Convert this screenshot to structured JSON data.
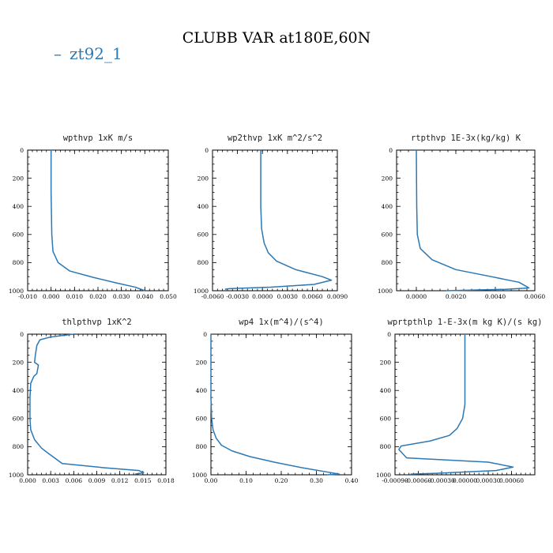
{
  "figure": {
    "title": "CLUBB VAR at180E,60N",
    "legend": [
      {
        "label": "zt92_1",
        "color": "#2b78b4"
      }
    ]
  },
  "chart_data": [
    {
      "type": "line",
      "title": "wpthvp  1xK m/s",
      "xlim": [
        -0.01,
        0.05
      ],
      "ylim": [
        1000,
        0
      ],
      "xticks": [
        -0.01,
        0.0,
        0.01,
        0.02,
        0.03,
        0.04,
        0.05
      ],
      "xtick_labels": [
        "-0.010",
        "0.000",
        "0.010",
        "0.020",
        "0.030",
        "0.040",
        "0.050"
      ],
      "yticks": [
        0,
        200,
        400,
        600,
        800,
        1000
      ],
      "ytick_labels": [
        "0",
        "200",
        "400",
        "600",
        "800",
        "1000"
      ],
      "series": [
        {
          "name": "zt92_1",
          "x": [
            0.0,
            0.0,
            0.0003,
            0.0008,
            0.003,
            0.008,
            0.018,
            0.028,
            0.036,
            0.04
          ],
          "y": [
            0,
            300,
            600,
            720,
            800,
            860,
            905,
            945,
            975,
            1000
          ]
        }
      ]
    },
    {
      "type": "line",
      "title": "wp2thvp  1xK m^2/s^2",
      "xlim": [
        -0.006,
        0.009
      ],
      "ylim": [
        1000,
        0
      ],
      "xticks": [
        -0.006,
        -0.003,
        0.0,
        0.003,
        0.006,
        0.009
      ],
      "xtick_labels": [
        "-0.0060",
        "-0.0030",
        "0.0000",
        "0.0030",
        "0.0060",
        "0.0090"
      ],
      "yticks": [
        0,
        200,
        400,
        600,
        800,
        1000
      ],
      "ytick_labels": [
        "0",
        "200",
        "400",
        "600",
        "800",
        "1000"
      ],
      "series": [
        {
          "name": "zt92_1",
          "x": [
            -0.0002,
            -0.0002,
            -0.0001,
            0.0002,
            0.0007,
            0.0017,
            0.004,
            0.0072,
            0.0083,
            0.0062,
            0.001,
            -0.004,
            -0.0045
          ],
          "y": [
            0,
            400,
            560,
            660,
            730,
            790,
            850,
            900,
            925,
            955,
            975,
            985,
            990
          ]
        }
      ]
    },
    {
      "type": "line",
      "title": "rtpthvp  1E-3x(kg/kg) K",
      "xlim": [
        -0.001,
        0.006
      ],
      "ylim": [
        1000,
        0
      ],
      "xticks": [
        0.0,
        0.002,
        0.004,
        0.006
      ],
      "xtick_labels": [
        "0.0000",
        "0.0020",
        "0.0040",
        "0.0060"
      ],
      "yticks": [
        0,
        200,
        400,
        600,
        800,
        1000
      ],
      "ytick_labels": [
        "0",
        "200",
        "400",
        "600",
        "800",
        "1000"
      ],
      "series": [
        {
          "name": "zt92_1",
          "x": [
            0.0,
            2e-05,
            5e-05,
            0.0002,
            0.0008,
            0.002,
            0.0038,
            0.0052,
            0.0057,
            0.0045,
            0.0015
          ],
          "y": [
            0,
            400,
            600,
            700,
            780,
            850,
            900,
            940,
            980,
            990,
            1000
          ]
        }
      ]
    },
    {
      "type": "line",
      "title": "thlpthvp  1xK^2",
      "xlim": [
        0.0,
        0.018
      ],
      "ylim": [
        1000,
        0
      ],
      "xticks": [
        0.0,
        0.003,
        0.006,
        0.009,
        0.012,
        0.015,
        0.018
      ],
      "xtick_labels": [
        "0.000",
        "0.003",
        "0.006",
        "0.009",
        "0.012",
        "0.015",
        "0.018"
      ],
      "yticks": [
        0,
        200,
        400,
        600,
        800,
        1000
      ],
      "ytick_labels": [
        "0",
        "200",
        "400",
        "600",
        "800",
        "1000"
      ],
      "series": [
        {
          "name": "zt92_1",
          "x": [
            0.006,
            0.003,
            0.0016,
            0.0012,
            0.001,
            0.0009,
            0.0014,
            0.0012,
            0.0008,
            0.0004,
            0.0003,
            0.0003,
            0.0004,
            0.0009,
            0.0018,
            0.0025,
            0.0045,
            0.01,
            0.0145,
            0.0151,
            0.014
          ],
          "y": [
            0,
            20,
            40,
            80,
            150,
            200,
            220,
            280,
            300,
            350,
            450,
            600,
            680,
            750,
            810,
            840,
            920,
            950,
            970,
            985,
            995
          ]
        }
      ]
    },
    {
      "type": "line",
      "title": "wp4  1x(m^4)/(s^4)",
      "xlim": [
        0.0,
        0.4
      ],
      "ylim": [
        1000,
        0
      ],
      "xticks": [
        0.0,
        0.1,
        0.2,
        0.3,
        0.4
      ],
      "xtick_labels": [
        "0.00",
        "0.10",
        "0.20",
        "0.30",
        "0.40"
      ],
      "yticks": [
        0,
        200,
        400,
        600,
        800,
        1000
      ],
      "ytick_labels": [
        "0",
        "200",
        "400",
        "600",
        "800",
        "1000"
      ],
      "series": [
        {
          "name": "zt92_1",
          "x": [
            0.0,
            0.0,
            0.002,
            0.006,
            0.015,
            0.03,
            0.06,
            0.11,
            0.18,
            0.26,
            0.33,
            0.365,
            0.33
          ],
          "y": [
            0,
            450,
            600,
            680,
            740,
            790,
            830,
            870,
            910,
            950,
            980,
            995,
            1000
          ]
        }
      ]
    },
    {
      "type": "line",
      "title": "wprtpthlp  1-E-3x(m kg K)/(s kg)",
      "xlim": [
        -0.0009,
        0.0009
      ],
      "ylim": [
        1000,
        0
      ],
      "xticks": [
        -0.0009,
        -0.0006,
        -0.0003,
        0.0,
        0.0003,
        0.0006
      ],
      "xtick_labels": [
        "-0.00090",
        "-0.00060",
        "-0.00030",
        "0.00000",
        "0.00030",
        "0.00060"
      ],
      "yticks": [
        0,
        200,
        400,
        600,
        800,
        1000
      ],
      "ytick_labels": [
        "0",
        "200",
        "400",
        "600",
        "800",
        "1000"
      ],
      "series": [
        {
          "name": "zt92_1",
          "x": [
            0.0,
            0.0,
            -3e-05,
            -0.0001,
            -0.0002,
            -0.00045,
            -0.00082,
            -0.00085,
            -0.00075,
            0.0003,
            0.00062,
            0.0004,
            -0.0004,
            -0.0007
          ],
          "y": [
            0,
            500,
            600,
            670,
            720,
            760,
            795,
            820,
            880,
            910,
            945,
            970,
            990,
            995
          ]
        }
      ]
    }
  ]
}
